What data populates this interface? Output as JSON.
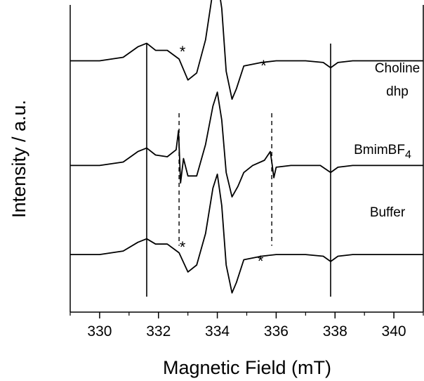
{
  "chart_data": {
    "type": "line",
    "xlabel": "Magnetic Field (mT)",
    "ylabel": "Intensity / a.u.",
    "xlim": [
      329,
      341
    ],
    "x_ticks": [
      330,
      332,
      334,
      336,
      338,
      340
    ],
    "ylim": [
      -4.2,
      4.6
    ],
    "y_tick_labels": false,
    "grid": false,
    "reference_lines": {
      "solid_x": [
        331.6,
        337.85
      ],
      "dashed_x": [
        332.7,
        335.85
      ]
    },
    "series": [
      {
        "name": "Choline dhp",
        "label_lines": [
          "Choline",
          "dhp"
        ],
        "offset": 3.0,
        "x": [
          329.0,
          330.0,
          330.8,
          331.3,
          331.6,
          331.9,
          332.3,
          332.7,
          333.0,
          333.3,
          333.6,
          333.85,
          334.0,
          334.15,
          334.3,
          334.5,
          334.65,
          334.9,
          335.2,
          335.5,
          336.0,
          337.0,
          337.6,
          337.85,
          338.1,
          338.6,
          339.5,
          341.0
        ],
        "values": [
          0.0,
          0.0,
          0.1,
          0.4,
          0.5,
          0.3,
          0.3,
          0.05,
          -0.55,
          -0.35,
          0.6,
          2.0,
          2.35,
          1.5,
          -0.3,
          -1.1,
          -0.8,
          -0.15,
          -0.1,
          -0.05,
          0.0,
          0.0,
          -0.05,
          -0.2,
          -0.05,
          0.0,
          0.0,
          0.0
        ]
      },
      {
        "name": "BmimBF4",
        "label_lines": [
          "BmimBF4"
        ],
        "offset": 0.0,
        "x": [
          329.0,
          330.0,
          330.8,
          331.3,
          331.6,
          331.9,
          332.3,
          332.6,
          332.68,
          332.75,
          332.85,
          333.0,
          333.3,
          333.6,
          333.85,
          334.0,
          334.15,
          334.3,
          334.5,
          334.7,
          334.9,
          335.2,
          335.6,
          335.8,
          335.86,
          335.92,
          336.0,
          336.5,
          337.5,
          337.85,
          338.1,
          338.6,
          339.5,
          341.0
        ],
        "values": [
          0.0,
          0.0,
          0.1,
          0.4,
          0.5,
          0.3,
          0.25,
          0.45,
          1.0,
          -0.5,
          0.2,
          -0.3,
          -0.3,
          0.6,
          1.7,
          2.1,
          1.3,
          -0.2,
          -0.9,
          -0.6,
          -0.2,
          0.0,
          0.15,
          0.4,
          0.05,
          -0.35,
          -0.05,
          0.0,
          0.0,
          -0.2,
          -0.05,
          0.0,
          0.0,
          0.0
        ]
      },
      {
        "name": "Buffer",
        "label_lines": [
          "Buffer"
        ],
        "offset": -2.55,
        "x": [
          329.0,
          330.0,
          330.8,
          331.3,
          331.6,
          331.9,
          332.3,
          332.7,
          333.0,
          333.3,
          333.6,
          333.85,
          334.0,
          334.15,
          334.3,
          334.5,
          334.65,
          334.9,
          335.2,
          335.5,
          336.0,
          337.0,
          337.6,
          337.85,
          338.1,
          338.6,
          339.5,
          341.0
        ],
        "values": [
          0.0,
          0.0,
          0.1,
          0.35,
          0.45,
          0.3,
          0.3,
          0.05,
          -0.5,
          -0.3,
          0.6,
          1.9,
          2.3,
          1.4,
          -0.3,
          -1.1,
          -0.8,
          -0.15,
          -0.1,
          -0.05,
          0.0,
          0.0,
          -0.05,
          -0.2,
          -0.05,
          0.0,
          0.0,
          0.0
        ]
      }
    ],
    "annotations": [
      {
        "text": "*",
        "x": 332.7,
        "y": 3.35
      },
      {
        "text": "*",
        "x": 335.45,
        "y": 2.95
      },
      {
        "text": "*",
        "x": 332.7,
        "y": -2.25
      },
      {
        "text": "*",
        "x": 335.35,
        "y": -2.65
      }
    ]
  }
}
